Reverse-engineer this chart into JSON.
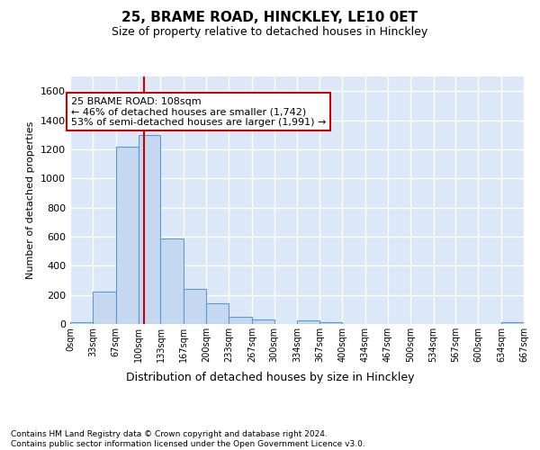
{
  "title": "25, BRAME ROAD, HINCKLEY, LE10 0ET",
  "subtitle": "Size of property relative to detached houses in Hinckley",
  "xlabel": "Distribution of detached houses by size in Hinckley",
  "ylabel": "Number of detached properties",
  "bin_edges": [
    0,
    33,
    67,
    100,
    133,
    167,
    200,
    233,
    267,
    300,
    334,
    367,
    400,
    434,
    467,
    500,
    534,
    567,
    600,
    634,
    667
  ],
  "bar_heights": [
    10,
    220,
    1220,
    1300,
    590,
    240,
    140,
    50,
    30,
    0,
    25,
    10,
    0,
    0,
    0,
    0,
    0,
    0,
    0,
    10
  ],
  "bar_color": "#c5d8f0",
  "bar_edge_color": "#5b9bd5",
  "vline_x": 108,
  "vline_color": "#cc0000",
  "ylim_max": 1700,
  "yticks": [
    0,
    200,
    400,
    600,
    800,
    1000,
    1200,
    1400,
    1600
  ],
  "annotation_text": "25 BRAME ROAD: 108sqm\n← 46% of detached houses are smaller (1,742)\n53% of semi-detached houses are larger (1,991) →",
  "annotation_box_edgecolor": "#cc0000",
  "footer_line1": "Contains HM Land Registry data © Crown copyright and database right 2024.",
  "footer_line2": "Contains public sector information licensed under the Open Government Licence v3.0.",
  "plot_bg_color": "#dce8f7",
  "grid_color": "#ffffff",
  "fig_bg_color": "#ffffff",
  "tick_labels": [
    "0sqm",
    "33sqm",
    "67sqm",
    "100sqm",
    "133sqm",
    "167sqm",
    "200sqm",
    "233sqm",
    "267sqm",
    "300sqm",
    "334sqm",
    "367sqm",
    "400sqm",
    "434sqm",
    "467sqm",
    "500sqm",
    "534sqm",
    "567sqm",
    "600sqm",
    "634sqm",
    "667sqm"
  ]
}
